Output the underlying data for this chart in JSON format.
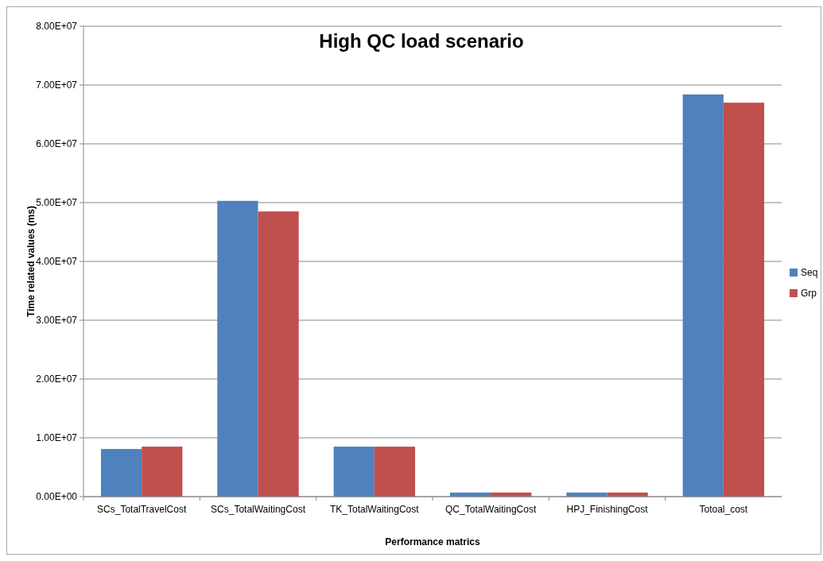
{
  "chart_data": {
    "type": "bar",
    "title": "High QC load scenario",
    "xlabel": "Performance matrics",
    "ylabel": "Time related values (ms)",
    "categories": [
      "SCs_TotalTravelCost",
      "SCs_TotalWaitingCost",
      "TK_TotalWaitingCost",
      "QC_TotalWaitingCost",
      "HPJ_FinishingCost",
      "Totoal_cost"
    ],
    "series": [
      {
        "name": "Seq",
        "color": "#4f81bd",
        "values": [
          8100000,
          50300000,
          8500000,
          700000,
          700000,
          68400000
        ]
      },
      {
        "name": "Grp",
        "color": "#c0504d",
        "values": [
          8500000,
          48500000,
          8500000,
          700000,
          700000,
          67000000
        ]
      }
    ],
    "ylim": [
      0,
      80000000
    ],
    "yticks": [
      {
        "value": 0,
        "label": "0.00E+00"
      },
      {
        "value": 10000000,
        "label": "1.00E+07"
      },
      {
        "value": 20000000,
        "label": "2.00E+07"
      },
      {
        "value": 30000000,
        "label": "3.00E+07"
      },
      {
        "value": 40000000,
        "label": "4.00E+07"
      },
      {
        "value": 50000000,
        "label": "5.00E+07"
      },
      {
        "value": 60000000,
        "label": "6.00E+07"
      },
      {
        "value": 70000000,
        "label": "7.00E+07"
      },
      {
        "value": 80000000,
        "label": "8.00E+07"
      }
    ],
    "grid": "y",
    "legend": "right"
  }
}
